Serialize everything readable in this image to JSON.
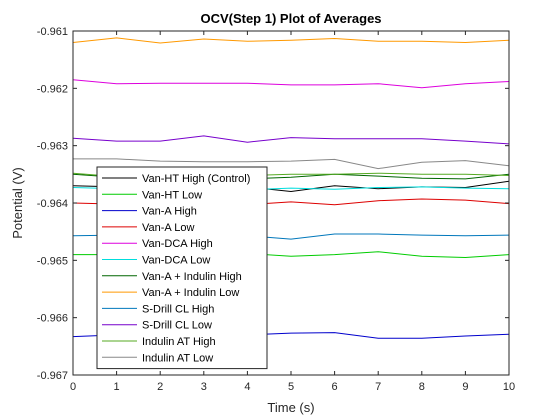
{
  "chart_data": {
    "type": "line",
    "title": "OCV(Step 1) Plot of Averages",
    "xlabel": "Time (s)",
    "ylabel": "Potential (V)",
    "xlim": [
      0,
      10
    ],
    "ylim": [
      -0.967,
      -0.961
    ],
    "xticks": [
      "0",
      "1",
      "2",
      "3",
      "4",
      "5",
      "6",
      "7",
      "8",
      "9",
      "10"
    ],
    "yticks": [
      "-0.961",
      "-0.962",
      "-0.963",
      "-0.964",
      "-0.965",
      "-0.966",
      "-0.967"
    ],
    "grid": false,
    "legend_position": "inside-left",
    "x": [
      0,
      1,
      2,
      3,
      4,
      5,
      6,
      7,
      8,
      9,
      10
    ],
    "series": [
      {
        "name": "Van-HT High (Control)",
        "color": "#000000",
        "values": [
          -0.9637,
          -0.96372,
          -0.96371,
          -0.96373,
          -0.96372,
          -0.9638,
          -0.9637,
          -0.96375,
          -0.96372,
          -0.96373,
          -0.96362
        ]
      },
      {
        "name": "Van-HT Low",
        "color": "#00cc00",
        "values": [
          -0.9649,
          -0.9649,
          -0.96492,
          -0.9649,
          -0.96488,
          -0.96493,
          -0.9649,
          -0.96485,
          -0.96493,
          -0.96495,
          -0.9649
        ]
      },
      {
        "name": "Van-A High",
        "color": "#0000cc",
        "values": [
          -0.96633,
          -0.9663,
          -0.96631,
          -0.96632,
          -0.9663,
          -0.96627,
          -0.96626,
          -0.96636,
          -0.96636,
          -0.96632,
          -0.96629
        ]
      },
      {
        "name": "Van-A Low",
        "color": "#dd0000",
        "values": [
          -0.964,
          -0.96402,
          -0.96405,
          -0.964,
          -0.96403,
          -0.96398,
          -0.96403,
          -0.96396,
          -0.96393,
          -0.96395,
          -0.96401
        ]
      },
      {
        "name": "Van-DCA High",
        "color": "#dd00dd",
        "values": [
          -0.96185,
          -0.96192,
          -0.96191,
          -0.96191,
          -0.96191,
          -0.96194,
          -0.96194,
          -0.96192,
          -0.96199,
          -0.96192,
          -0.96188
        ]
      },
      {
        "name": "Van-DCA Low",
        "color": "#00dddd",
        "values": [
          -0.96373,
          -0.96375,
          -0.96373,
          -0.96373,
          -0.96377,
          -0.96374,
          -0.96376,
          -0.96373,
          -0.96372,
          -0.96374,
          -0.96375
        ]
      },
      {
        "name": "Van-A + Indulin High",
        "color": "#006600",
        "values": [
          -0.9635,
          -0.96355,
          -0.96358,
          -0.96357,
          -0.96358,
          -0.96355,
          -0.9635,
          -0.96353,
          -0.96357,
          -0.96358,
          -0.9635
        ]
      },
      {
        "name": "Van-A + Indulin Low",
        "color": "#ff9900",
        "values": [
          -0.9612,
          -0.96112,
          -0.96121,
          -0.96114,
          -0.96118,
          -0.96116,
          -0.96113,
          -0.96118,
          -0.96118,
          -0.9612,
          -0.96116
        ]
      },
      {
        "name": "S-Drill CL High",
        "color": "#0077bb",
        "values": [
          -0.96457,
          -0.96456,
          -0.96458,
          -0.96456,
          -0.96457,
          -0.96463,
          -0.96454,
          -0.96454,
          -0.96456,
          -0.96457,
          -0.96456
        ]
      },
      {
        "name": "S-Drill CL Low",
        "color": "#7700cc",
        "values": [
          -0.96287,
          -0.96292,
          -0.96292,
          -0.96283,
          -0.96294,
          -0.96286,
          -0.96288,
          -0.96288,
          -0.96288,
          -0.96292,
          -0.96297
        ]
      },
      {
        "name": "Indulin AT High",
        "color": "#55aa22",
        "values": [
          -0.96348,
          -0.96354,
          -0.96355,
          -0.9635,
          -0.96352,
          -0.9635,
          -0.9635,
          -0.96348,
          -0.9635,
          -0.9635,
          -0.96352
        ]
      },
      {
        "name": "Indulin AT Low",
        "color": "#888888",
        "values": [
          -0.96323,
          -0.96323,
          -0.96327,
          -0.96328,
          -0.96328,
          -0.96327,
          -0.96324,
          -0.9634,
          -0.96329,
          -0.96326,
          -0.96335
        ]
      }
    ]
  }
}
